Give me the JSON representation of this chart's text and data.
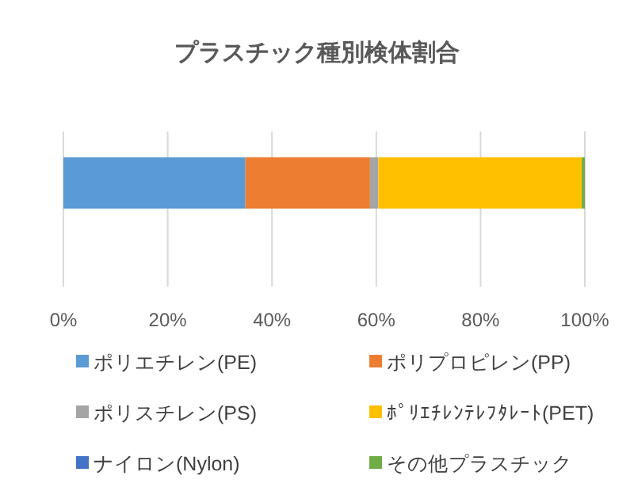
{
  "chart_data": {
    "type": "bar",
    "orientation": "horizontal",
    "stacked": true,
    "title": "プラスチック種別検体割合",
    "categories": [
      null
    ],
    "series": [
      {
        "name": "ポリエチレン(PE)",
        "color": "#5b9bd5",
        "values": [
          34.9
        ]
      },
      {
        "name": "ポリプロピレン(PP)",
        "color": "#ed7d31",
        "values": [
          23.9
        ]
      },
      {
        "name": "ポリスチレン(PS)",
        "color": "#a5a5a5",
        "values": [
          1.6
        ]
      },
      {
        "name": "ﾎﾟﾘｴﾁﾚﾝﾃﾚﾌﾀﾚｰﾄ(PET)",
        "color": "#ffc000",
        "values": [
          39.0
        ]
      },
      {
        "name": "ナイロン(Nylon)",
        "color": "#4472c4",
        "values": [
          0
        ]
      },
      {
        "name": "その他プラスチック",
        "color": "#70ad47",
        "values": [
          0.6
        ]
      }
    ],
    "xlim": [
      0,
      100
    ],
    "xticks": [
      {
        "value": 0,
        "label": "0%"
      },
      {
        "value": 20,
        "label": "20%"
      },
      {
        "value": 40,
        "label": "40%"
      },
      {
        "value": 60,
        "label": "60%"
      },
      {
        "value": 80,
        "label": "80%"
      },
      {
        "value": 100,
        "label": "100%"
      }
    ],
    "grid": "x",
    "legend": "bottom"
  }
}
